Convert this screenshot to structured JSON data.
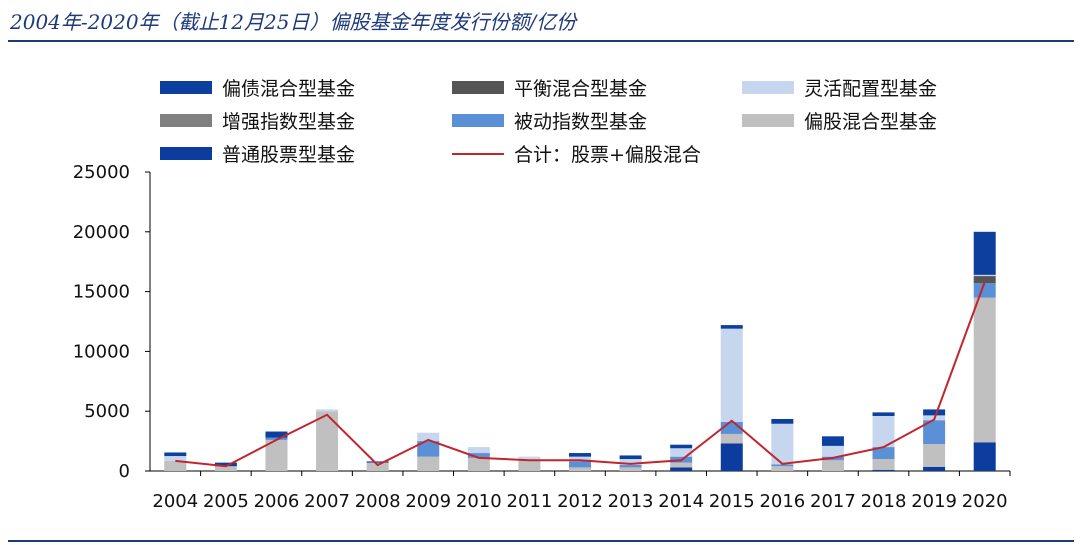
{
  "title": "2004年-2020年（截止12月25日）偏股基金年度发行份额/亿份",
  "chart_data": {
    "type": "bar",
    "stacked": true,
    "categories": [
      "2004",
      "2005",
      "2006",
      "2007",
      "2008",
      "2009",
      "2010",
      "2011",
      "2012",
      "2013",
      "2014",
      "2015",
      "2016",
      "2017",
      "2018",
      "2019",
      "2020"
    ],
    "ylim": [
      0,
      25000
    ],
    "yticks": [
      "0",
      "5000",
      "10000",
      "15000",
      "20000",
      "25000"
    ],
    "grid": false,
    "legend_position": "top",
    "series": [
      {
        "name": "普通股票型基金",
        "color": "#0b3c9e",
        "values": [
          0,
          0,
          0,
          0,
          0,
          0,
          0,
          0,
          0,
          0,
          300,
          2300,
          0,
          0,
          100,
          350,
          2400
        ]
      },
      {
        "name": "偏股混合型基金",
        "color": "#c0c0c0",
        "values": [
          850,
          400,
          2600,
          5000,
          700,
          1200,
          1100,
          900,
          300,
          300,
          400,
          800,
          400,
          900,
          900,
          1900,
          12100
        ]
      },
      {
        "name": "被动指数型基金",
        "color": "#5b8fd6",
        "values": [
          0,
          0,
          200,
          0,
          0,
          1300,
          400,
          0,
          500,
          200,
          500,
          1000,
          150,
          300,
          1000,
          2000,
          1200
        ]
      },
      {
        "name": "增强指数型基金",
        "color": "#808080",
        "values": [
          0,
          0,
          0,
          0,
          0,
          0,
          0,
          0,
          0,
          0,
          0,
          0,
          0,
          0,
          0,
          0,
          0
        ]
      },
      {
        "name": "平衡混合型基金",
        "color": "#555555",
        "values": [
          0,
          0,
          0,
          0,
          0,
          0,
          0,
          0,
          0,
          0,
          0,
          0,
          0,
          0,
          0,
          0,
          600
        ]
      },
      {
        "name": "灵活配置型基金",
        "color": "#c6d6ee",
        "values": [
          400,
          0,
          0,
          150,
          0,
          700,
          500,
          300,
          400,
          500,
          700,
          7800,
          3400,
          900,
          2600,
          400,
          100
        ]
      },
      {
        "name": "偏债混合型基金",
        "color": "#0d3f9f",
        "values": [
          300,
          300,
          500,
          0,
          100,
          0,
          0,
          0,
          300,
          300,
          300,
          300,
          400,
          800,
          300,
          500,
          3600
        ]
      }
    ],
    "line": {
      "name": "合计：股票+偏股混合",
      "color": "#c0262c",
      "values": [
        850,
        400,
        2600,
        4700,
        500,
        2600,
        1100,
        900,
        900,
        600,
        900,
        4200,
        600,
        1100,
        2000,
        4300,
        15800
      ]
    },
    "legend_order": [
      "偏债混合型基金",
      "平衡混合型基金",
      "灵活配置型基金",
      "增强指数型基金",
      "被动指数型基金",
      "偏股混合型基金",
      "普通股票型基金",
      "合计：股票+偏股混合"
    ]
  }
}
